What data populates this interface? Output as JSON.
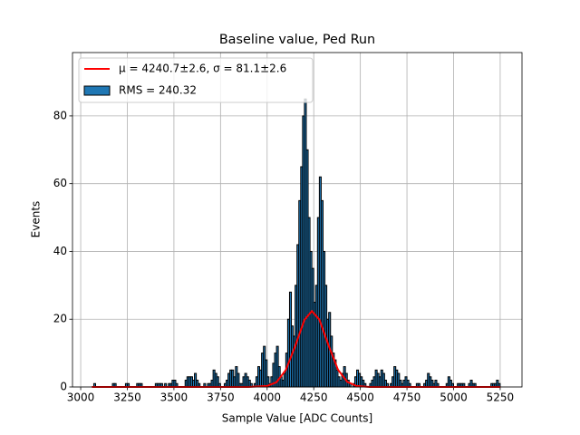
{
  "chart_data": {
    "type": "histogram",
    "title": "Baseline value, Ped Run",
    "xlabel": "Sample Value [ADC Counts]",
    "ylabel": "Events",
    "name": "RMS = 240.32",
    "color": "#1f77b4",
    "edgecolor": "#000000",
    "bins": [
      3060,
      3070,
      3080,
      3090,
      3100,
      3110,
      3120,
      3130,
      3140,
      3150,
      3160,
      3170,
      3180,
      3190,
      3200,
      3210,
      3220,
      3230,
      3240,
      3250,
      3260,
      3270,
      3280,
      3290,
      3300,
      3310,
      3320,
      3330,
      3340,
      3350,
      3360,
      3370,
      3380,
      3390,
      3400,
      3410,
      3420,
      3430,
      3440,
      3450,
      3460,
      3470,
      3480,
      3490,
      3500,
      3510,
      3520,
      3530,
      3540,
      3550,
      3560,
      3570,
      3580,
      3590,
      3600,
      3610,
      3620,
      3630,
      3640,
      3650,
      3660,
      3670,
      3680,
      3690,
      3700,
      3710,
      3720,
      3730,
      3740,
      3750,
      3760,
      3770,
      3780,
      3790,
      3800,
      3810,
      3820,
      3830,
      3840,
      3850,
      3860,
      3870,
      3880,
      3890,
      3900,
      3910,
      3920,
      3930,
      3940,
      3950,
      3960,
      3970,
      3980,
      3990,
      4000,
      4010,
      4020,
      4030,
      4040,
      4050,
      4060,
      4070,
      4080,
      4090,
      4100,
      4110,
      4120,
      4130,
      4140,
      4150,
      4160,
      4170,
      4180,
      4190,
      4200,
      4210,
      4220,
      4230,
      4240,
      4250,
      4260,
      4270,
      4280,
      4290,
      4300,
      4310,
      4320,
      4330,
      4340,
      4350,
      4360,
      4370,
      4380,
      4390,
      4400,
      4410,
      4420,
      4430,
      4440,
      4450,
      4460,
      4470,
      4480,
      4490,
      4500,
      4510,
      4520,
      4530,
      4540,
      4550,
      4560,
      4570,
      4580,
      4590,
      4600,
      4610,
      4620,
      4630,
      4640,
      4650,
      4660,
      4670,
      4680,
      4690,
      4700,
      4710,
      4720,
      4730,
      4740,
      4750,
      4760,
      4770,
      4780,
      4790,
      4800,
      4810,
      4820,
      4830,
      4840,
      4850,
      4860,
      4870,
      4880,
      4890,
      4900,
      4910,
      4920,
      4930,
      4940,
      4950,
      4960,
      4970,
      4980,
      4990,
      5000,
      5010,
      5020,
      5030,
      5040,
      5050,
      5060,
      5070,
      5080,
      5090,
      5100,
      5110,
      5120,
      5130,
      5140,
      5150,
      5160,
      5170,
      5180,
      5190,
      5200,
      5210,
      5220,
      5230,
      5240,
      5250,
      5260
    ],
    "counts": [
      0,
      1,
      0,
      0,
      0,
      0,
      0,
      0,
      0,
      0,
      0,
      1,
      1,
      0,
      0,
      0,
      0,
      0,
      1,
      1,
      0,
      0,
      0,
      0,
      1,
      1,
      1,
      0,
      0,
      0,
      0,
      0,
      0,
      0,
      1,
      1,
      1,
      1,
      0,
      1,
      0,
      1,
      1,
      2,
      2,
      1,
      0,
      0,
      0,
      0,
      2,
      3,
      3,
      3,
      2,
      4,
      2,
      1,
      0,
      0,
      1,
      0,
      1,
      1,
      2,
      5,
      4,
      3,
      1,
      0,
      0,
      1,
      2,
      4,
      5,
      5,
      3,
      6,
      4,
      1,
      1,
      3,
      4,
      3,
      2,
      1,
      0,
      1,
      3,
      6,
      5,
      10,
      12,
      8,
      3,
      1,
      3,
      7,
      10,
      12,
      6,
      3,
      2,
      4,
      10,
      20,
      28,
      18,
      15,
      30,
      42,
      55,
      65,
      80,
      85,
      70,
      50,
      40,
      35,
      25,
      30,
      50,
      62,
      55,
      40,
      30,
      20,
      22,
      15,
      10,
      8,
      5,
      3,
      2,
      4,
      6,
      4,
      2,
      1,
      0,
      1,
      3,
      5,
      4,
      3,
      2,
      1,
      0,
      0,
      1,
      2,
      3,
      5,
      4,
      3,
      5,
      4,
      2,
      1,
      0,
      1,
      3,
      6,
      5,
      4,
      2,
      1,
      2,
      3,
      2,
      1,
      0,
      0,
      0,
      1,
      1,
      0,
      0,
      1,
      2,
      4,
      3,
      2,
      1,
      2,
      1,
      0,
      0,
      0,
      0,
      1,
      3,
      2,
      1,
      0,
      0,
      1,
      1,
      1,
      1,
      0,
      0,
      1,
      2,
      1,
      1,
      0,
      0,
      0,
      0,
      0,
      0,
      0,
      0,
      1,
      1,
      1,
      2,
      1,
      0
    ],
    "series": [
      {
        "type": "line",
        "name": "μ = 4240.7±2.6, σ = 81.1±2.6",
        "color": "#ff0000",
        "x": [
          3060,
          3900,
          4000,
          4050,
          4100,
          4150,
          4200,
          4240,
          4280,
          4330,
          4380,
          4430,
          4480,
          4550,
          5250
        ],
        "values": [
          0,
          0,
          0.3,
          1.4,
          5.0,
          12.0,
          19.8,
          22.4,
          19.9,
          12.2,
          5.1,
          1.5,
          0.3,
          0,
          0
        ]
      }
    ],
    "xlim": [
      2956,
      5367
    ],
    "ylim": [
      0,
      98.7
    ],
    "xticks": [
      3000,
      3250,
      3500,
      3750,
      4000,
      4250,
      4500,
      4750,
      5000,
      5250
    ],
    "yticks": [
      0,
      20,
      40,
      60,
      80
    ],
    "grid": true,
    "legend": "upper left"
  }
}
